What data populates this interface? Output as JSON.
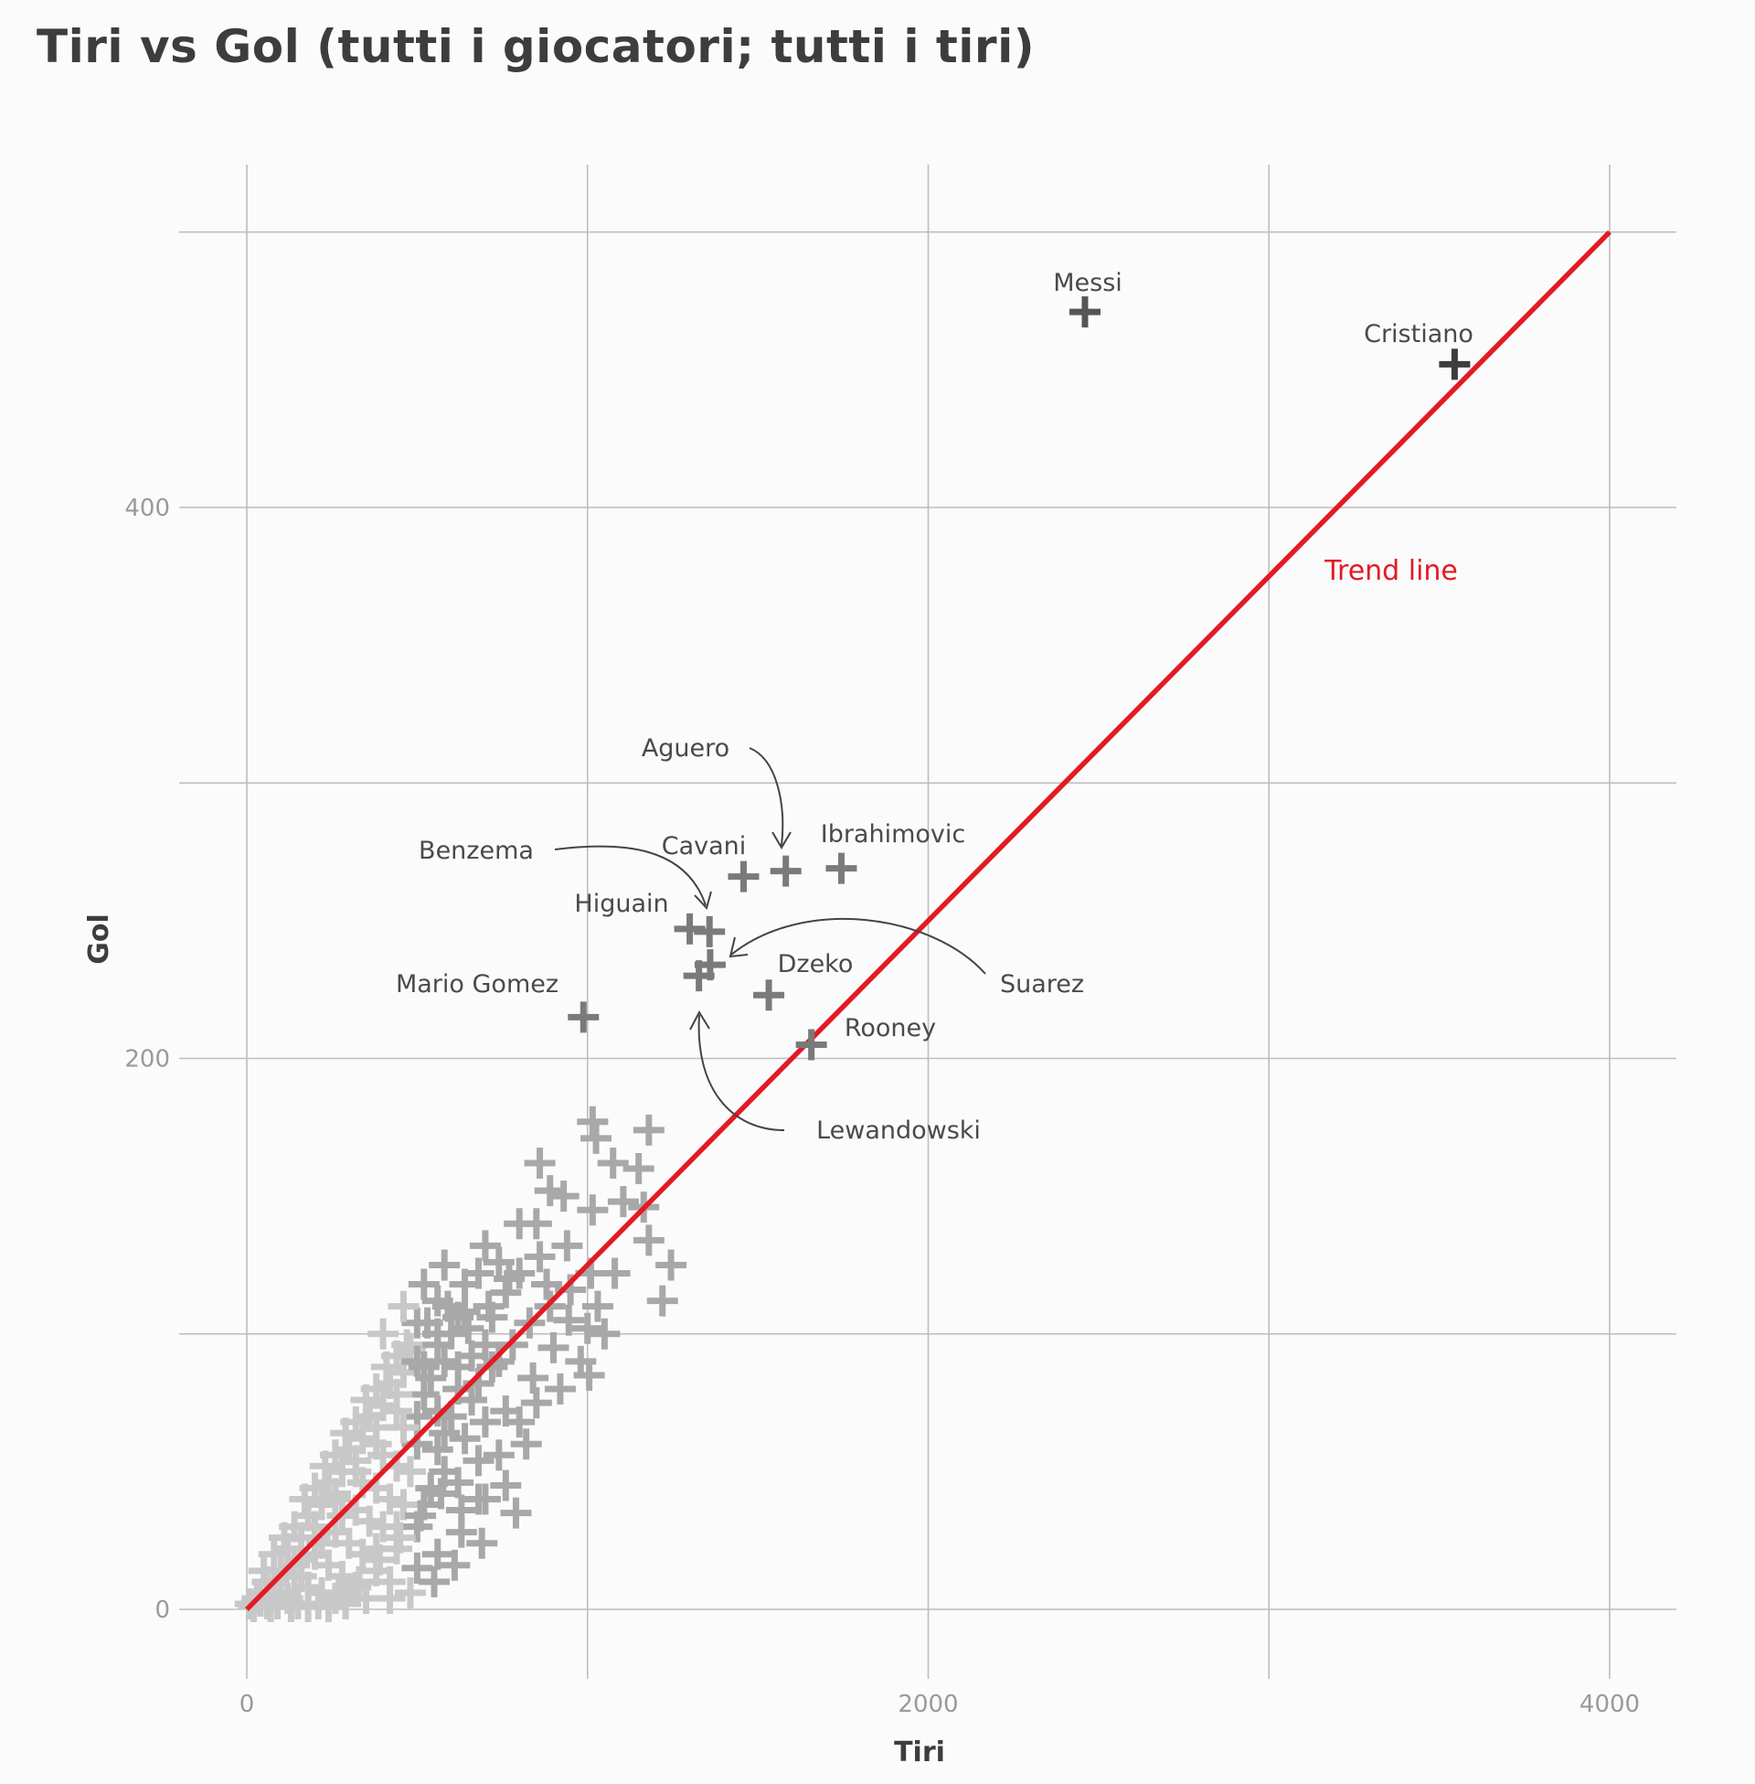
{
  "title": "Tiri vs Gol (tutti i giocatori; tutti i tiri)",
  "chart_data": {
    "type": "scatter",
    "title": "Tiri vs Gol (tutti i giocatori; tutti i tiri)",
    "xlabel": "Tiri",
    "ylabel": "Gol",
    "xlim": [
      -200,
      4200
    ],
    "ylim": [
      -25,
      525
    ],
    "xticks": [
      0,
      1000,
      2000,
      3000,
      4000
    ],
    "xtick_labels": [
      "0",
      "",
      "2000",
      "",
      "4000"
    ],
    "yticks": [
      0,
      100,
      200,
      300,
      400,
      500
    ],
    "ytick_labels": [
      "0",
      "",
      "200",
      "",
      "400",
      ""
    ],
    "grid": true,
    "marker": "plus",
    "colors": {
      "trend": "#e31a24",
      "highlight": "#3d3d3d",
      "labeled": "#7a7a7a",
      "bulk": "#a8a8a8",
      "bulk_light": "#c8c8c8"
    },
    "labeled_points": [
      {
        "name": "Messi",
        "x": 2460,
        "y": 471
      },
      {
        "name": "Cristiano",
        "x": 3545,
        "y": 452
      },
      {
        "name": "Aguero",
        "x": 1582,
        "y": 268
      },
      {
        "name": "Cavani",
        "x": 1458,
        "y": 266
      },
      {
        "name": "Ibrahimovic",
        "x": 1745,
        "y": 269
      },
      {
        "name": "Benzema",
        "x": 1300,
        "y": 247
      },
      {
        "name": "Higuain",
        "x": 1358,
        "y": 246
      },
      {
        "name": "Suarez",
        "x": 1360,
        "y": 234
      },
      {
        "name": "Dzeko",
        "x": 1532,
        "y": 223
      },
      {
        "name": "Mario Gomez",
        "x": 988,
        "y": 215
      },
      {
        "name": "Rooney",
        "x": 1657,
        "y": 205
      },
      {
        "name": "Lewandowski",
        "x": 1327,
        "y": 230
      }
    ],
    "other_points": [
      [
        1015,
        177
      ],
      [
        1025,
        171
      ],
      [
        1180,
        174
      ],
      [
        1075,
        162
      ],
      [
        1150,
        160
      ],
      [
        860,
        162
      ],
      [
        1105,
        148
      ],
      [
        1165,
        146
      ],
      [
        1180,
        134
      ],
      [
        1245,
        125
      ],
      [
        1220,
        112
      ],
      [
        1015,
        145
      ],
      [
        930,
        150
      ],
      [
        890,
        152
      ],
      [
        1080,
        122
      ],
      [
        1030,
        110
      ],
      [
        1000,
        102
      ],
      [
        940,
        132
      ],
      [
        1050,
        100
      ],
      [
        945,
        105
      ],
      [
        980,
        90
      ],
      [
        1005,
        85
      ],
      [
        920,
        80
      ],
      [
        850,
        75
      ],
      [
        880,
        118
      ],
      [
        860,
        128
      ],
      [
        800,
        122
      ],
      [
        760,
        115
      ],
      [
        700,
        132
      ],
      [
        720,
        106
      ],
      [
        640,
        108
      ],
      [
        560,
        112
      ],
      [
        600,
        100
      ],
      [
        660,
        92
      ],
      [
        720,
        88
      ],
      [
        780,
        96
      ],
      [
        840,
        84
      ],
      [
        900,
        95
      ],
      [
        820,
        60
      ],
      [
        760,
        45
      ],
      [
        790,
        35
      ],
      [
        700,
        40
      ],
      [
        630,
        28
      ],
      [
        560,
        20
      ],
      [
        500,
        15
      ],
      [
        420,
        10
      ],
      [
        380,
        22
      ],
      [
        440,
        30
      ],
      [
        520,
        38
      ],
      [
        580,
        50
      ],
      [
        640,
        62
      ],
      [
        700,
        68
      ],
      [
        760,
        72
      ],
      [
        680,
        54
      ],
      [
        620,
        80
      ],
      [
        560,
        72
      ],
      [
        500,
        60
      ],
      [
        440,
        52
      ],
      [
        380,
        44
      ],
      [
        320,
        36
      ],
      [
        260,
        28
      ],
      [
        200,
        20
      ],
      [
        140,
        12
      ],
      [
        80,
        6
      ],
      [
        40,
        3
      ],
      [
        20,
        1
      ],
      [
        60,
        10
      ],
      [
        120,
        22
      ],
      [
        180,
        34
      ],
      [
        240,
        46
      ],
      [
        300,
        58
      ],
      [
        360,
        70
      ],
      [
        420,
        82
      ],
      [
        480,
        94
      ],
      [
        540,
        84
      ],
      [
        600,
        70
      ],
      [
        660,
        76
      ],
      [
        480,
        50
      ],
      [
        420,
        40
      ],
      [
        360,
        32
      ],
      [
        300,
        24
      ],
      [
        240,
        16
      ],
      [
        180,
        8
      ],
      [
        120,
        4
      ],
      [
        100,
        14
      ],
      [
        160,
        26
      ],
      [
        220,
        38
      ],
      [
        280,
        50
      ],
      [
        340,
        62
      ],
      [
        400,
        74
      ],
      [
        460,
        86
      ],
      [
        520,
        78
      ],
      [
        580,
        64
      ],
      [
        540,
        44
      ],
      [
        460,
        38
      ],
      [
        400,
        30
      ],
      [
        340,
        20
      ],
      [
        280,
        12
      ],
      [
        220,
        6
      ],
      [
        160,
        18
      ],
      [
        200,
        30
      ],
      [
        260,
        42
      ],
      [
        320,
        54
      ],
      [
        380,
        66
      ],
      [
        440,
        78
      ],
      [
        500,
        70
      ],
      [
        560,
        58
      ],
      [
        620,
        46
      ],
      [
        680,
        40
      ],
      [
        740,
        56
      ],
      [
        800,
        68
      ],
      [
        500,
        30
      ],
      [
        440,
        22
      ],
      [
        380,
        14
      ],
      [
        320,
        8
      ],
      [
        260,
        4
      ],
      [
        80,
        20
      ],
      [
        140,
        30
      ],
      [
        200,
        44
      ],
      [
        260,
        56
      ],
      [
        320,
        68
      ],
      [
        380,
        80
      ],
      [
        440,
        92
      ],
      [
        500,
        104
      ],
      [
        560,
        96
      ],
      [
        620,
        88
      ],
      [
        680,
        82
      ],
      [
        740,
        90
      ],
      [
        400,
        100
      ],
      [
        460,
        110
      ],
      [
        520,
        118
      ],
      [
        580,
        125
      ],
      [
        640,
        118
      ],
      [
        700,
        96
      ],
      [
        580,
        90
      ],
      [
        520,
        88
      ],
      [
        460,
        66
      ],
      [
        400,
        56
      ],
      [
        340,
        46
      ],
      [
        280,
        34
      ],
      [
        220,
        24
      ],
      [
        160,
        12
      ],
      [
        100,
        6
      ],
      [
        60,
        2
      ],
      [
        30,
        4
      ],
      [
        90,
        2
      ],
      [
        150,
        2
      ],
      [
        210,
        2
      ],
      [
        270,
        6
      ],
      [
        330,
        10
      ],
      [
        390,
        18
      ],
      [
        450,
        26
      ],
      [
        510,
        34
      ],
      [
        570,
        42
      ],
      [
        630,
        36
      ],
      [
        690,
        24
      ],
      [
        610,
        16
      ],
      [
        550,
        10
      ],
      [
        480,
        6
      ],
      [
        420,
        4
      ],
      [
        350,
        4
      ],
      [
        290,
        2
      ],
      [
        240,
        1
      ],
      [
        180,
        1
      ],
      [
        130,
        1
      ],
      [
        70,
        1
      ],
      [
        10,
        2
      ],
      [
        50,
        14
      ],
      [
        110,
        26
      ],
      [
        170,
        40
      ],
      [
        230,
        52
      ],
      [
        290,
        64
      ],
      [
        350,
        76
      ],
      [
        410,
        88
      ],
      [
        470,
        96
      ],
      [
        530,
        104
      ],
      [
        590,
        110
      ],
      [
        650,
        102
      ],
      [
        710,
        110
      ],
      [
        770,
        120
      ],
      [
        830,
        104
      ],
      [
        890,
        110
      ],
      [
        950,
        116
      ],
      [
        1010,
        122
      ],
      [
        850,
        140
      ],
      [
        800,
        140
      ],
      [
        740,
        126
      ],
      [
        680,
        122
      ],
      [
        620,
        106
      ],
      [
        560,
        100
      ],
      [
        500,
        90
      ],
      [
        440,
        72
      ],
      [
        380,
        60
      ],
      [
        320,
        50
      ],
      [
        260,
        40
      ],
      [
        200,
        26
      ],
      [
        140,
        16
      ],
      [
        80,
        10
      ]
    ],
    "trend_line": {
      "x": [
        0,
        4000
      ],
      "y": [
        0,
        500
      ]
    },
    "annotations": [
      {
        "text": "Trend line",
        "x": 3280,
        "y": 378
      }
    ]
  }
}
